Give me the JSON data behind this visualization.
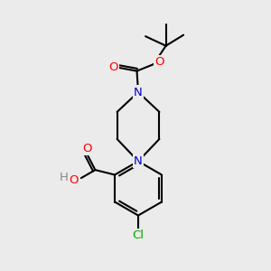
{
  "background_color": "#ebebeb",
  "bond_color": "#000000",
  "bond_width": 1.5,
  "atom_colors": {
    "O": "#ff0000",
    "N": "#0000cc",
    "Cl": "#00aa00",
    "C": "#000000",
    "H": "#888888"
  },
  "font_size_atoms": 9.5,
  "font_size_small": 8.5,
  "fig_w": 3.0,
  "fig_h": 3.0,
  "dpi": 100,
  "xlim": [
    0,
    10
  ],
  "ylim": [
    0,
    10
  ]
}
